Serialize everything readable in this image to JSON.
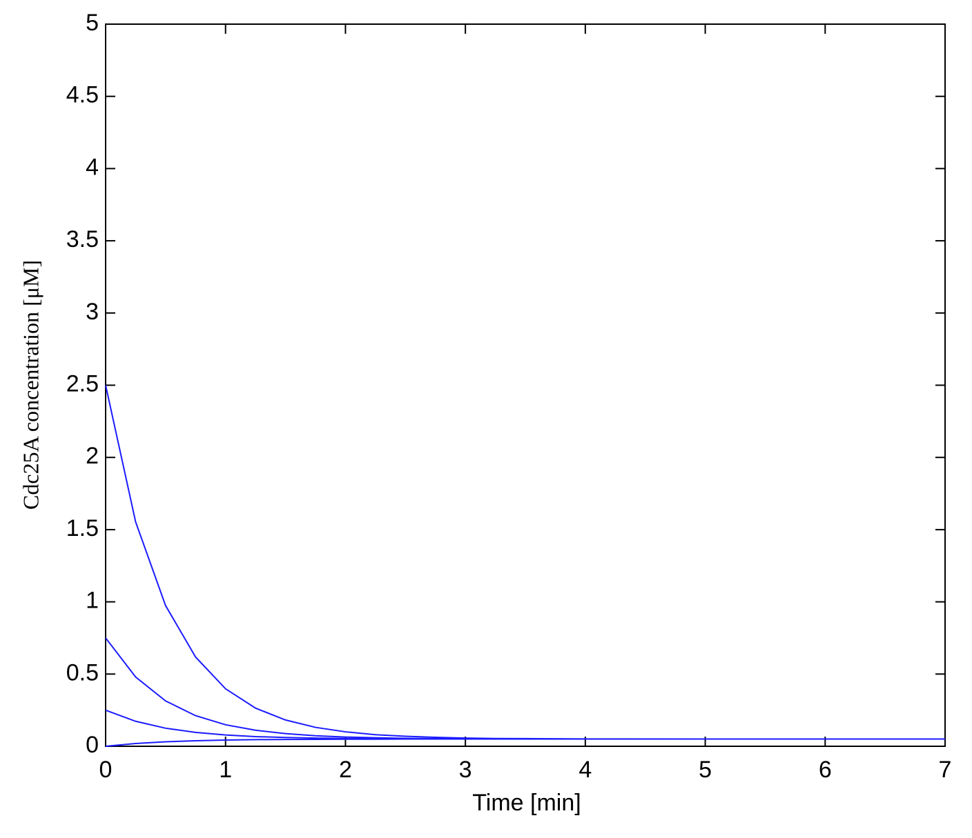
{
  "chart_data": {
    "type": "line",
    "xlabel": "Time [min]",
    "ylabel": "Cdc25A concentration [μM]",
    "x": [
      0,
      0.25,
      0.5,
      0.75,
      1,
      1.25,
      1.5,
      1.75,
      2,
      2.25,
      2.5,
      2.75,
      3,
      3.25,
      3.5,
      4,
      5,
      6,
      7
    ],
    "series": [
      {
        "color": "#1a1aff",
        "values": [
          2.5,
          1.554,
          0.974,
          0.618,
          0.398,
          0.264,
          0.182,
          0.131,
          0.1,
          0.08,
          0.069,
          0.062,
          0.057,
          0.054,
          0.053,
          0.051,
          0.05,
          0.05,
          0.05
        ]
      },
      {
        "color": "#1a1aff",
        "values": [
          0.75,
          0.48,
          0.314,
          0.212,
          0.149,
          0.111,
          0.088,
          0.073,
          0.064,
          0.059,
          0.055,
          0.053,
          0.052,
          0.051,
          0.051,
          0.05,
          0.05,
          0.05,
          0.05
        ]
      },
      {
        "color": "#1a1aff",
        "values": [
          0.25,
          0.173,
          0.125,
          0.096,
          0.078,
          0.067,
          0.061,
          0.057,
          0.054,
          0.052,
          0.052,
          0.051,
          0.051,
          0.05,
          0.05,
          0.05,
          0.05,
          0.05,
          0.05
        ]
      },
      {
        "color": "#1a1aff",
        "values": [
          0,
          0.019,
          0.031,
          0.038,
          0.043,
          0.046,
          0.047,
          0.048,
          0.049,
          0.049,
          0.05,
          0.05,
          0.05,
          0.05,
          0.05,
          0.05,
          0.05,
          0.05,
          0.05
        ]
      }
    ],
    "xlim": [
      0,
      7
    ],
    "xticks": [
      0,
      1,
      2,
      3,
      4,
      5,
      6,
      7
    ],
    "ylim": [
      0,
      5
    ],
    "yticks": [
      0,
      0.5,
      1,
      1.5,
      2,
      2.5,
      3,
      3.5,
      4,
      4.5,
      5
    ],
    "grid": false
  }
}
